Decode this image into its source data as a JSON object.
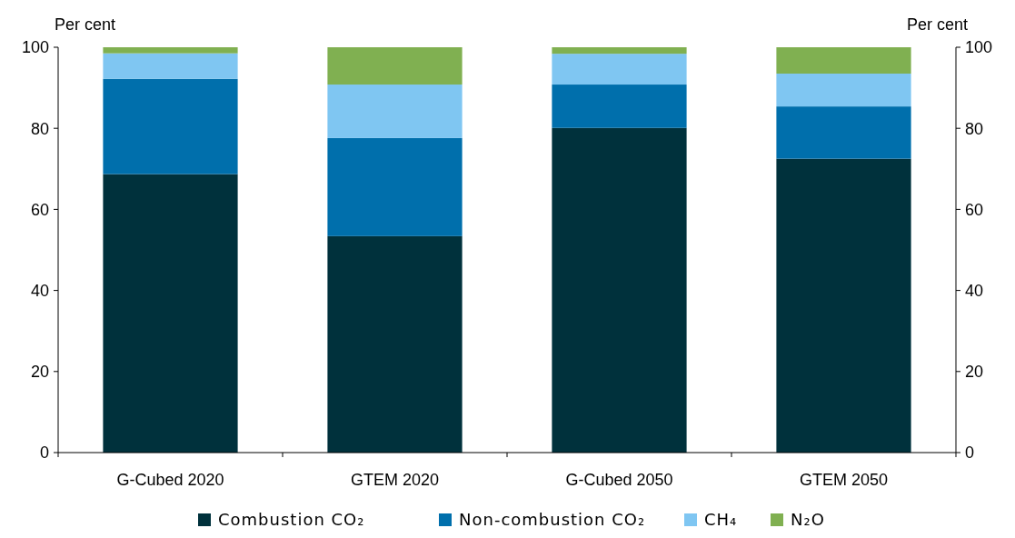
{
  "chart_data": {
    "type": "bar",
    "stacked": true,
    "ylabel": "Per cent",
    "y2label": "Per cent",
    "categories": [
      "G-Cubed 2020",
      "GTEM 2020",
      "G-Cubed 2050",
      "GTEM 2050"
    ],
    "series": [
      {
        "name": "Combustion CO₂",
        "color": "#00313c",
        "values": [
          68.7,
          53.4,
          80.1,
          72.5
        ]
      },
      {
        "name": "Non-combustion CO₂",
        "color": "#006fac",
        "values": [
          23.5,
          24.2,
          10.7,
          12.9
        ]
      },
      {
        "name": "CH₄",
        "color": "#7fc6f2",
        "values": [
          6.3,
          13.2,
          7.6,
          8.1
        ]
      },
      {
        "name": "N₂O",
        "color": "#80b051",
        "values": [
          1.5,
          9.2,
          1.6,
          6.5
        ]
      }
    ],
    "ylim": [
      0,
      100
    ],
    "yticks": [
      0,
      20,
      40,
      60,
      80,
      100
    ],
    "y2lim": [
      0,
      100
    ],
    "y2ticks": [
      0,
      20,
      40,
      60,
      80,
      100
    ],
    "legend": "bottom",
    "grid": false
  }
}
